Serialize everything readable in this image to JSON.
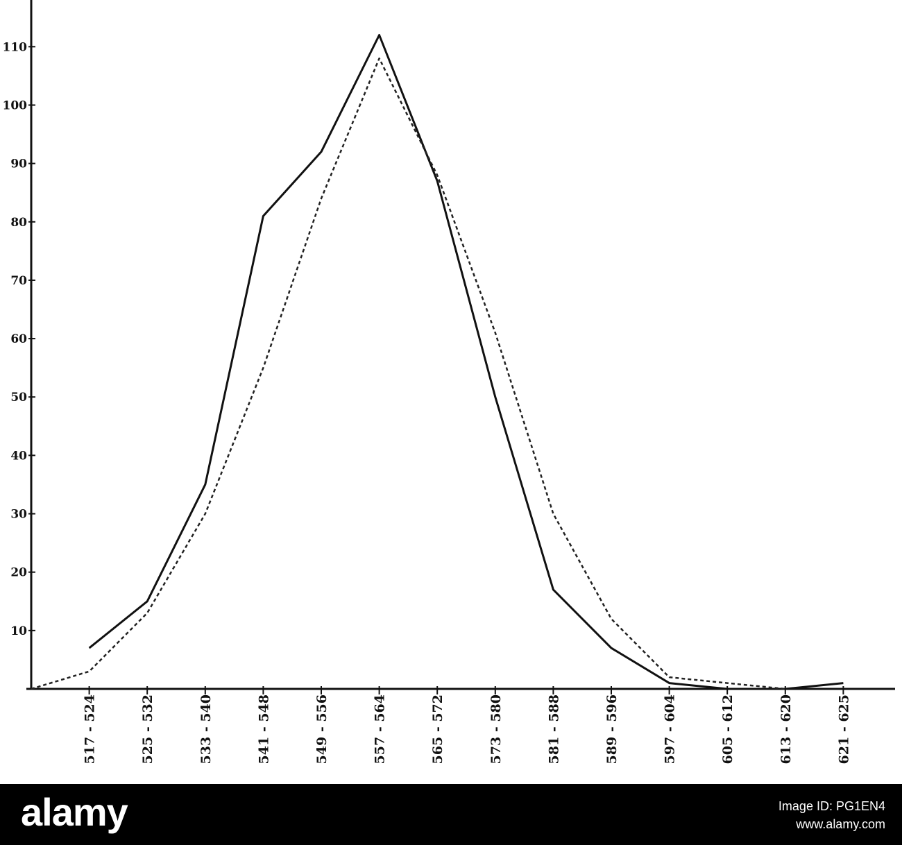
{
  "chart_data": {
    "type": "line",
    "categories": [
      null,
      "517 - 524",
      "525 - 532",
      "533 - 540",
      "541 - 548",
      "549 - 556",
      "557 - 564",
      "565 - 572",
      "573 - 580",
      "581 - 588",
      "589 - 596",
      "597 - 604",
      "605 - 612",
      "613 - 620",
      "621 - 625"
    ],
    "series": [
      {
        "color": "#111111",
        "style": "solid",
        "values": [
          null,
          7,
          15,
          35,
          81,
          92,
          112,
          87,
          50,
          17,
          7,
          1,
          0,
          0,
          1
        ]
      },
      {
        "color": "#222222",
        "style": "dashed",
        "values": [
          0,
          3,
          13,
          30,
          55,
          84,
          108,
          88,
          61,
          30,
          12,
          2,
          1,
          0,
          null
        ]
      }
    ],
    "ylim": [
      0,
      118
    ],
    "yticks": [
      10,
      20,
      30,
      40,
      50,
      60,
      70,
      80,
      90,
      100,
      110
    ],
    "grid": false
  },
  "watermark": {
    "brand": "alamy",
    "image_id": "Image ID: PG1EN4",
    "site": "www.alamy.com"
  }
}
